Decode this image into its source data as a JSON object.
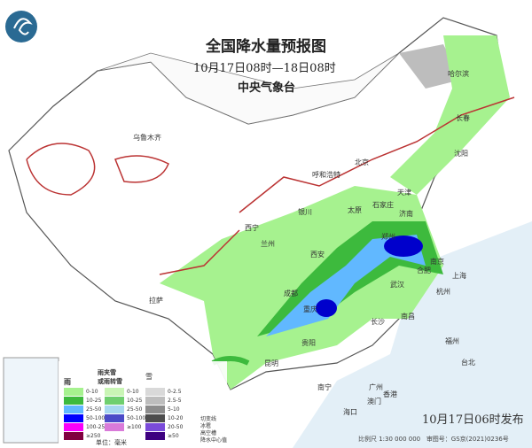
{
  "header": {
    "title": "全国降水量预报图",
    "period": "10月17日08时—18日08时",
    "issuer": "中央气象台"
  },
  "footer": {
    "published": "10月17日06时发布",
    "scale": "比例尺 1:30 000 000",
    "map_approval": "审图号：GS京(2021)0236号"
  },
  "cities": [
    "乌鲁木齐",
    "哈尔滨",
    "长春",
    "沈阳",
    "呼和浩特",
    "北京",
    "天津",
    "石家庄",
    "太原",
    "银川",
    "西宁",
    "兰州",
    "济南",
    "郑州",
    "西安",
    "合肥",
    "南京",
    "上海",
    "杭州",
    "武汉",
    "成都",
    "重庆",
    "贵阳",
    "长沙",
    "南昌",
    "福州",
    "台北",
    "昆明",
    "南宁",
    "广州",
    "香港",
    "澳门",
    "海口",
    "拉萨"
  ],
  "legend": {
    "rain": {
      "title": "雨",
      "items": [
        "0-10",
        "10-25",
        "25-50",
        "50-100",
        "100-250",
        "≥250"
      ],
      "colors": [
        "#a6f28f",
        "#3dba3d",
        "#61b8ff",
        "#0000fe",
        "#fa00fa",
        "#800040"
      ]
    },
    "sleet": {
      "title": "雨夹雪\n或雨转雪",
      "items": [
        "0-10",
        "10-25",
        "25-50",
        "50-100",
        "≥100"
      ]
    },
    "snow": {
      "title": "雪",
      "items": [
        "0-2.5",
        "2.5-5",
        "5-10",
        "10-20",
        "20-50",
        "≥50"
      ],
      "colors": [
        "#d9d9d9",
        "#bdbdbd",
        "#8c8c8c",
        "#4d4d4d",
        "#7a4bd9",
        "#3d0080"
      ]
    },
    "symbols": [
      "切变线",
      "冰雹",
      "高空槽",
      "降水中心值"
    ],
    "unit": "单位：毫米"
  }
}
